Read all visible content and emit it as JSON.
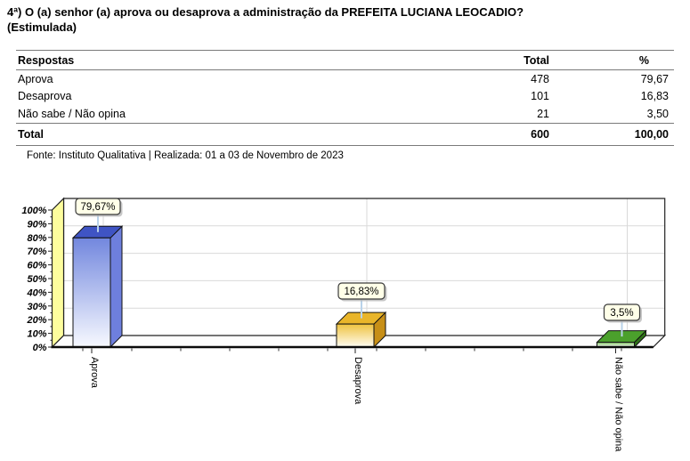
{
  "title": {
    "question": "4ª) O (a) senhor (a) aprova ou desaprova a administração da PREFEITA LUCIANA LEOCADIO?",
    "mode": "(Estimulada)"
  },
  "table": {
    "headers": {
      "respostas": "Respostas",
      "total": "Total",
      "percent": "%"
    },
    "rows": [
      {
        "label": "Aprova",
        "total": "478",
        "percent": "79,67"
      },
      {
        "label": "Desaprova",
        "total": "101",
        "percent": "16,83"
      },
      {
        "label": "Não sabe / Não opina",
        "total": "21",
        "percent": "3,50"
      }
    ],
    "total_row": {
      "label": "Total",
      "total": "600",
      "percent": "100,00"
    }
  },
  "source": "Fonte: Instituto Qualitativa | Realizada: 01 a 03 de Novembro de 2023",
  "chart_data": {
    "type": "bar",
    "style": "3d",
    "categories": [
      "Aprova",
      "Desaprova",
      "Não sabe / Não opina"
    ],
    "values": [
      79.67,
      16.83,
      3.5
    ],
    "data_labels": [
      "79,67%",
      "16,83%",
      "3,5%"
    ],
    "y_ticks": [
      "0%",
      "10%",
      "20%",
      "30%",
      "40%",
      "50%",
      "60%",
      "70%",
      "80%",
      "90%",
      "100%"
    ],
    "ylim": [
      0,
      100
    ],
    "grid": true,
    "legend": false,
    "colors": {
      "bars": [
        {
          "top": "#3f54c4",
          "side": "#6e7fdd",
          "front_top": "#7287de",
          "front_bottom": "#f7f9ff"
        },
        {
          "top": "#e9b52a",
          "side": "#c78f17",
          "front_top": "#eec23e",
          "front_bottom": "#fffdf4"
        },
        {
          "top": "#4ba02c",
          "side": "#2f7218",
          "front_top": "#7ec261",
          "front_bottom": "#ffffff"
        }
      ],
      "left_wall": "#fdfd9d",
      "floor": "#fdfdfd",
      "gridline": "#d9d9d9",
      "callout_bg": "#ffffe8",
      "callout_border": "#3a3a3a",
      "callout_shadow": "#b9b9b9",
      "leader": "#b9d3ea",
      "outline": "#111111"
    }
  }
}
